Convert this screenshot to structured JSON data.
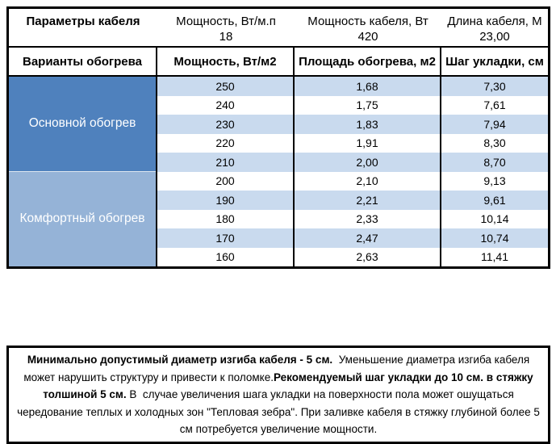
{
  "colors": {
    "group_main_blue": "#4f81bd",
    "group_comfort_blue": "#95b3d7",
    "row_band_blue": "#c9daee",
    "border_black": "#000000",
    "group_text_white": "#ffffff"
  },
  "params_table": {
    "title": "Параметры кабеля",
    "columns": [
      {
        "label": "Мощность, Вт/м.п",
        "value": "18"
      },
      {
        "label": "Мощность кабеля, Вт",
        "value": "420"
      },
      {
        "label": "Длина кабеля, М",
        "value": "23,00"
      }
    ]
  },
  "heating_table": {
    "headers": {
      "variants": "Варианты обогрева",
      "power": "Мощность, Вт/м2",
      "area": "Площадь обогрева, м2",
      "step": "Шаг укладки, см"
    },
    "groups": [
      {
        "label": "Основной обогрев"
      },
      {
        "label": "Комфортный обогрев"
      }
    ],
    "rows": [
      {
        "power": "250",
        "area": "1,68",
        "step": "7,30"
      },
      {
        "power": "240",
        "area": "1,75",
        "step": "7,61"
      },
      {
        "power": "230",
        "area": "1,83",
        "step": "7,94"
      },
      {
        "power": "220",
        "area": "1,91",
        "step": "8,30"
      },
      {
        "power": "210",
        "area": "2,00",
        "step": "8,70"
      },
      {
        "power": "200",
        "area": "2,10",
        "step": "9,13"
      },
      {
        "power": "190",
        "area": "2,21",
        "step": "9,61"
      },
      {
        "power": "180",
        "area": "2,33",
        "step": "10,14"
      },
      {
        "power": "170",
        "area": "2,47",
        "step": "10,74"
      },
      {
        "power": "160",
        "area": "2,63",
        "step": "11,41"
      }
    ]
  },
  "note": {
    "segments": [
      {
        "text": "Минимально допустимый диаметр изгиба кабеля - 5 см.",
        "bold": true
      },
      {
        "text": "  Уменьшение диаметра изгиба кабеля может нарушить структуру и привести к поломке.",
        "bold": false
      },
      {
        "text": "Рекомендуемый шаг укладки до 10 см. в стяжку толшиной 5 см.",
        "bold": true
      },
      {
        "text": " В  случае увеличения шага укладки на поверхности пола может ошущаться чередование теплых и холодных зон \"Тепловая зебра\". При заливке кабеля в стяжку глубиной более 5 см потребуется увеличение мощности.",
        "bold": false
      }
    ]
  }
}
